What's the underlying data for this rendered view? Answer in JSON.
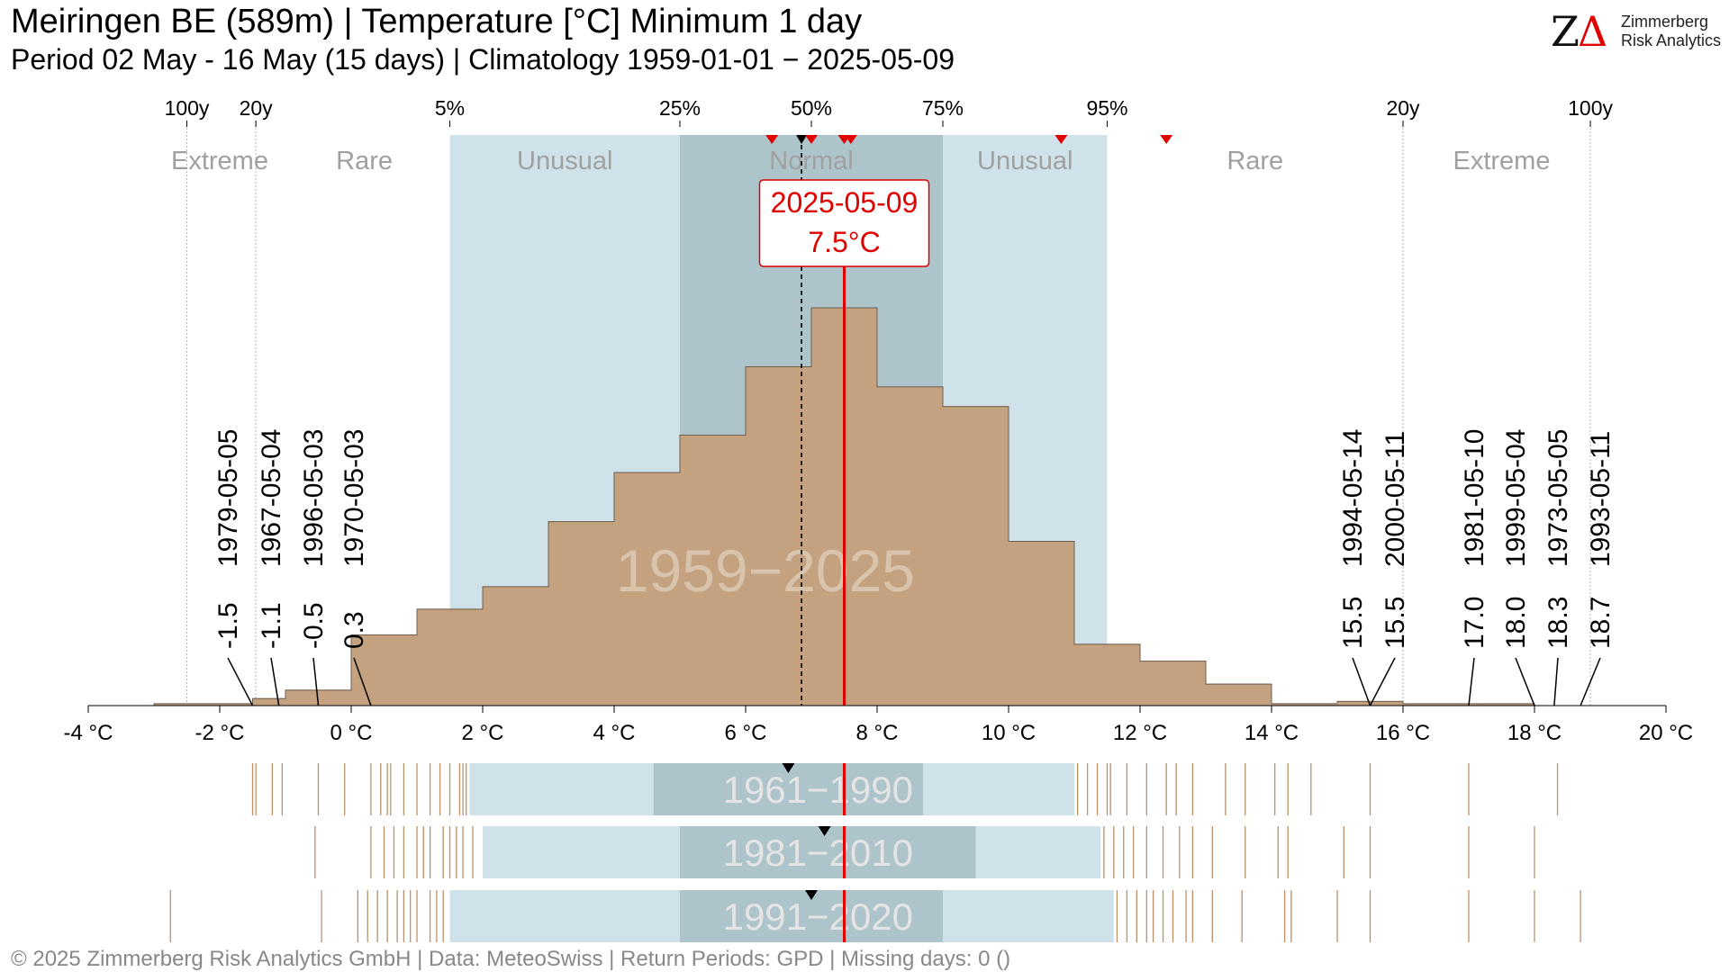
{
  "header": {
    "title": "Meiringen  BE (589m) | Temperature [°C] Minimum 1 day",
    "subtitle": "Period 02 May - 16 May (15 days) | Climatology 1959-01-01 − 2025-05-09"
  },
  "logo": {
    "line1": "Zimmerberg",
    "line2": "Risk Analytics",
    "mark_z": "Z",
    "mark_a": "Δ"
  },
  "footer": "©  2025 Zimmerberg Risk Analytics GmbH | Data: MeteoSwiss | Return Periods: GPD | Missing days: 0 ()",
  "colors": {
    "histogram": "#c4a27f",
    "unusual_band": "#cfe2e9",
    "normal_band": "#aec4cb",
    "highlight": "#e00000",
    "band_label": "#a0a0a0",
    "period_label": "#e4e4e4"
  },
  "chart_data": {
    "type": "histogram",
    "x_unit": "°C",
    "xlim": [
      -4,
      20
    ],
    "x_ticks": [
      -4,
      -2,
      0,
      2,
      4,
      6,
      8,
      10,
      12,
      14,
      16,
      18,
      20
    ],
    "x_tick_labels": [
      "-4 °C",
      "-2 °C",
      "0 °C",
      "2 °C",
      "4 °C",
      "6 °C",
      "8 °C",
      "10 °C",
      "12 °C",
      "14 °C",
      "16 °C",
      "18 °C",
      "20 °C"
    ],
    "bins": [
      {
        "from": -3,
        "to": -2,
        "height": 0.004
      },
      {
        "from": -2,
        "to": -1.5,
        "height": 0.004
      },
      {
        "from": -1.5,
        "to": -1,
        "height": 0.015
      },
      {
        "from": -1,
        "to": 0,
        "height": 0.033
      },
      {
        "from": 0,
        "to": 1,
        "height": 0.151
      },
      {
        "from": 1,
        "to": 2,
        "height": 0.206
      },
      {
        "from": 2,
        "to": 3,
        "height": 0.254
      },
      {
        "from": 3,
        "to": 4,
        "height": 0.393
      },
      {
        "from": 4,
        "to": 5,
        "height": 0.498
      },
      {
        "from": 5,
        "to": 6,
        "height": 0.578
      },
      {
        "from": 6,
        "to": 7,
        "height": 0.724
      },
      {
        "from": 7,
        "to": 8,
        "height": 0.85
      },
      {
        "from": 8,
        "to": 9,
        "height": 0.681
      },
      {
        "from": 9,
        "to": 10,
        "height": 0.639
      },
      {
        "from": 10,
        "to": 11,
        "height": 0.351
      },
      {
        "from": 11,
        "to": 12,
        "height": 0.131
      },
      {
        "from": 12,
        "to": 13,
        "height": 0.095
      },
      {
        "from": 13,
        "to": 14,
        "height": 0.046
      },
      {
        "from": 14,
        "to": 15,
        "height": 0.004
      },
      {
        "from": 15,
        "to": 16,
        "height": 0.009
      },
      {
        "from": 16,
        "to": 18,
        "height": 0.004
      }
    ],
    "percentile_ticks": [
      {
        "label": "100y",
        "x": -2.5
      },
      {
        "label": "20y",
        "x": -1.45
      },
      {
        "label": "5%",
        "x": 1.5
      },
      {
        "label": "25%",
        "x": 5
      },
      {
        "label": "50%",
        "x": 7
      },
      {
        "label": "75%",
        "x": 9
      },
      {
        "label": "95%",
        "x": 11.5
      },
      {
        "label": "20y",
        "x": 16
      },
      {
        "label": "100y",
        "x": 18.85
      }
    ],
    "bands": [
      {
        "label": "Extreme",
        "from": -4,
        "to": -2.5,
        "kind": "none"
      },
      {
        "label": "Rare",
        "from": -2.5,
        "to": 1.5,
        "kind": "none"
      },
      {
        "label": "Unusual",
        "from": 1.5,
        "to": 5,
        "kind": "unusual"
      },
      {
        "label": "Normal",
        "from": 5,
        "to": 9,
        "kind": "normal"
      },
      {
        "label": "Unusual",
        "from": 9,
        "to": 11.5,
        "kind": "unusual"
      },
      {
        "label": "Rare",
        "from": 11.5,
        "to": 16,
        "kind": "none"
      },
      {
        "label": "Extreme",
        "from": 16,
        "to": 20,
        "kind": "none"
      }
    ],
    "band_label_positions": [
      -2.0,
      0.2,
      3.25,
      7.0,
      10.25,
      13.75,
      17.5
    ],
    "median": 6.85,
    "highlight": {
      "date": "2025-05-09",
      "value": 7.5,
      "label": "7.5°C"
    },
    "recent_markers": [
      6.4,
      7.0,
      7.5,
      7.6,
      10.8,
      12.4
    ],
    "period_label": "1959−2025",
    "extremes_low": [
      {
        "date": "1979-05-05",
        "value": -1.5,
        "label": "-1.5"
      },
      {
        "date": "1967-05-04",
        "value": -1.1,
        "label": "-1.1"
      },
      {
        "date": "1996-05-03",
        "value": -0.5,
        "label": "-0.5"
      },
      {
        "date": "1970-05-03",
        "value": 0.3,
        "label": "0.3"
      }
    ],
    "extremes_high": [
      {
        "date": "1994-05-14",
        "value": 15.5,
        "label": "15.5"
      },
      {
        "date": "2000-05-11",
        "value": 15.5,
        "label": "15.5"
      },
      {
        "date": "1981-05-10",
        "value": 17.0,
        "label": "17.0"
      },
      {
        "date": "1999-05-04",
        "value": 18.0,
        "label": "18.0"
      },
      {
        "date": "1973-05-05",
        "value": 18.3,
        "label": "18.3"
      },
      {
        "date": "1993-05-11",
        "value": 18.7,
        "label": "18.7"
      }
    ],
    "climatology_periods": [
      {
        "label": "1961−1990",
        "unusual": [
          1.8,
          11.0
        ],
        "normal": [
          4.6,
          8.7
        ],
        "median": 6.65,
        "low_ticks": [
          -1.5,
          -1.45,
          -1.2,
          -1.05,
          -0.5,
          -0.1,
          0.3,
          0.45,
          0.55,
          0.6,
          0.8,
          1.0,
          1.2,
          1.35,
          1.5,
          1.65,
          1.7,
          1.75
        ],
        "high_ticks": [
          11.05,
          11.2,
          11.35,
          11.5,
          11.55,
          11.8,
          12.1,
          12.4,
          12.55,
          12.8,
          13.3,
          13.6,
          14.05,
          14.25,
          14.6,
          15.5,
          17.0,
          18.35
        ]
      },
      {
        "label": "1981−2010",
        "unusual": [
          2.0,
          11.4
        ],
        "normal": [
          5.0,
          9.5
        ],
        "median": 7.2,
        "low_ticks": [
          -0.55,
          0.3,
          0.5,
          0.65,
          0.8,
          1.0,
          1.1,
          1.2,
          1.4,
          1.5,
          1.6,
          1.7,
          1.85
        ],
        "high_ticks": [
          11.45,
          11.6,
          11.75,
          11.9,
          12.1,
          12.35,
          12.6,
          12.8,
          13.1,
          13.6,
          14.1,
          14.25,
          15.1,
          15.5,
          17.0,
          18.0
        ]
      },
      {
        "label": "1991−2020",
        "unusual": [
          1.5,
          11.6
        ],
        "normal": [
          5.0,
          9.0
        ],
        "median": 7.0,
        "low_ticks": [
          -2.75,
          -0.45,
          0.1,
          0.25,
          0.4,
          0.55,
          0.7,
          0.8,
          0.9,
          1.0,
          1.2,
          1.3,
          1.4
        ],
        "high_ticks": [
          11.65,
          11.8,
          11.95,
          12.1,
          12.2,
          12.35,
          12.5,
          12.7,
          12.8,
          13.1,
          13.55,
          14.2,
          14.3,
          15.0,
          15.5,
          17.0,
          18.0,
          18.7
        ]
      }
    ]
  }
}
